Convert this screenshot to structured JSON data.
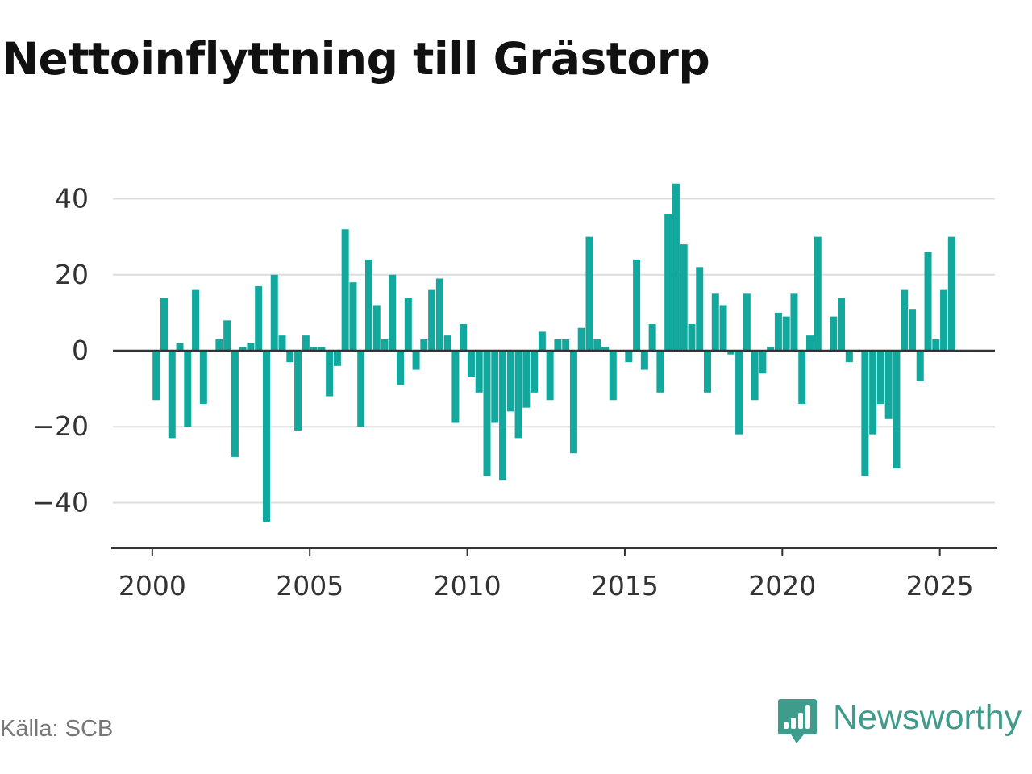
{
  "title": "Nettoinflyttning till Grästorp",
  "source": "Källa: SCB",
  "brand": {
    "name": "Newsworthy",
    "icon": "newsworthy-logo-icon",
    "color": "#3d9c8c"
  },
  "chart_data": {
    "type": "bar",
    "title": "Nettoinflyttning till Grästorp",
    "xlabel": "",
    "ylabel": "",
    "bar_color": "#13a89e",
    "gridlines": true,
    "x_ticks": [
      2000,
      2005,
      2010,
      2015,
      2020,
      2025
    ],
    "y_ticks": [
      40,
      20,
      0,
      -20,
      -40
    ],
    "y_tick_labels": [
      "40",
      "20",
      "0",
      "−20",
      "−40"
    ],
    "xlim": [
      1998.75,
      2026.8
    ],
    "ylim": [
      -52,
      52
    ],
    "x": [
      2000.125,
      2000.375,
      2000.625,
      2000.875,
      2001.125,
      2001.375,
      2001.625,
      2001.875,
      2002.125,
      2002.375,
      2002.625,
      2002.875,
      2003.125,
      2003.375,
      2003.625,
      2003.875,
      2004.125,
      2004.375,
      2004.625,
      2004.875,
      2005.125,
      2005.375,
      2005.625,
      2005.875,
      2006.125,
      2006.375,
      2006.625,
      2006.875,
      2007.125,
      2007.375,
      2007.625,
      2007.875,
      2008.125,
      2008.375,
      2008.625,
      2008.875,
      2009.125,
      2009.375,
      2009.625,
      2009.875,
      2010.125,
      2010.375,
      2010.625,
      2010.875,
      2011.125,
      2011.375,
      2011.625,
      2011.875,
      2012.125,
      2012.375,
      2012.625,
      2012.875,
      2013.125,
      2013.375,
      2013.625,
      2013.875,
      2014.125,
      2014.375,
      2014.625,
      2014.875,
      2015.125,
      2015.375,
      2015.625,
      2015.875,
      2016.125,
      2016.375,
      2016.625,
      2016.875,
      2017.125,
      2017.375,
      2017.625,
      2017.875,
      2018.125,
      2018.375,
      2018.625,
      2018.875,
      2019.125,
      2019.375,
      2019.625,
      2019.875,
      2020.125,
      2020.375,
      2020.625,
      2020.875,
      2021.125,
      2021.375,
      2021.625,
      2021.875,
      2022.125,
      2022.375,
      2022.625,
      2022.875,
      2023.125,
      2023.375,
      2023.625,
      2023.875,
      2024.125,
      2024.375,
      2024.625,
      2024.875,
      2025.125,
      2025.375
    ],
    "values": [
      -13,
      14,
      -23,
      2,
      -20,
      16,
      -14,
      0,
      3,
      8,
      -28,
      1,
      2,
      17,
      -45,
      20,
      4,
      -3,
      -21,
      4,
      1,
      1,
      -12,
      -4,
      32,
      18,
      -20,
      24,
      12,
      3,
      20,
      -9,
      14,
      -5,
      3,
      16,
      19,
      4,
      -19,
      7,
      -7,
      -11,
      -33,
      -19,
      -34,
      -16,
      -23,
      -15,
      -11,
      5,
      -13,
      3,
      3,
      -27,
      6,
      30,
      3,
      1,
      -13,
      0,
      -3,
      24,
      -5,
      7,
      -11,
      36,
      44,
      28,
      7,
      22,
      -11,
      15,
      12,
      -1,
      -22,
      15,
      -13,
      -6,
      1,
      10,
      9,
      15,
      -14,
      4,
      30,
      0,
      9,
      14,
      -3,
      0,
      -33,
      -22,
      -14,
      -18,
      -31,
      16,
      11,
      -8,
      26,
      3,
      16,
      30
    ]
  }
}
